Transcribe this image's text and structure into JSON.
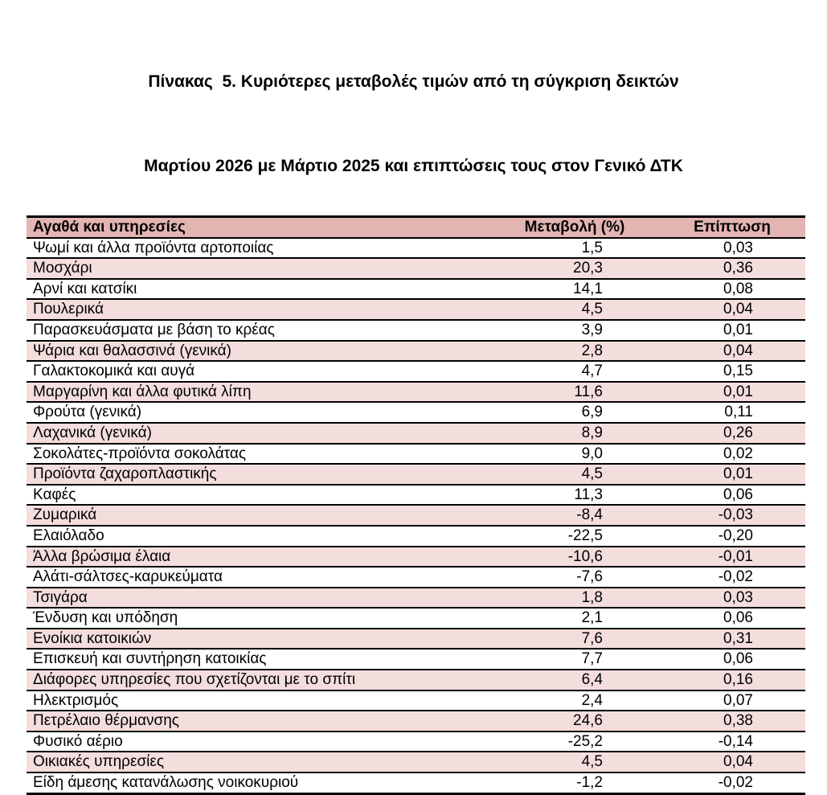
{
  "title": {
    "line1": "Πίνακας  5. Κυριότερες μεταβολές τιμών από τη σύγκριση δεικτών",
    "line2": "Μαρτίου 2026 με Μάρτιο 2025 και επιπτώσεις τους στον Γενικό ΔΤΚ"
  },
  "table": {
    "columns": [
      "Αγαθά και υπηρεσίες",
      "Μεταβολή  (%)",
      "Επίπτωση"
    ],
    "rows": [
      {
        "label": "Ψωμί και άλλα προϊόντα αρτοποιίας",
        "change": "1,5",
        "impact": "0,03"
      },
      {
        "label": "Μοσχάρι",
        "change": "20,3",
        "impact": "0,36"
      },
      {
        "label": "Αρνί και κατσίκι",
        "change": "14,1",
        "impact": "0,08"
      },
      {
        "label": "Πουλερικά",
        "change": "4,5",
        "impact": "0,04"
      },
      {
        "label": "Παρασκευάσματα με βάση το κρέας",
        "change": "3,9",
        "impact": "0,01"
      },
      {
        "label": "Ψάρια και θαλασσινά (γενικά)",
        "change": "2,8",
        "impact": "0,04"
      },
      {
        "label": "Γαλακτοκομικά και αυγά",
        "change": "4,7",
        "impact": "0,15"
      },
      {
        "label": "Μαργαρίνη και άλλα φυτικά λίπη",
        "change": "11,6",
        "impact": "0,01"
      },
      {
        "label": "Φρούτα (γενικά)",
        "change": "6,9",
        "impact": "0,11"
      },
      {
        "label": "Λαχανικά (γενικά)",
        "change": "8,9",
        "impact": "0,26"
      },
      {
        "label": "Σοκολάτες-προϊόντα σοκολάτας",
        "change": "9,0",
        "impact": "0,02"
      },
      {
        "label": "Προϊόντα ζαχαροπλαστικής",
        "change": "4,5",
        "impact": "0,01"
      },
      {
        "label": "Καφές",
        "change": "11,3",
        "impact": "0,06"
      },
      {
        "label": "Ζυμαρικά",
        "change": "-8,4",
        "impact": "-0,03"
      },
      {
        "label": "Ελαιόλαδο",
        "change": "-22,5",
        "impact": "-0,20"
      },
      {
        "label": "Άλλα βρώσιμα έλαια",
        "change": "-10,6",
        "impact": "-0,01"
      },
      {
        "label": "Αλάτι-σάλτσες-καρυκεύματα",
        "change": "-7,6",
        "impact": "-0,02"
      },
      {
        "label": "Τσιγάρα",
        "change": "1,8",
        "impact": "0,03"
      },
      {
        "label": "Ένδυση και υπόδηση",
        "change": "2,1",
        "impact": "0,06"
      },
      {
        "label": "Ενοίκια κατοικιών",
        "change": "7,6",
        "impact": "0,31"
      },
      {
        "label": "Επισκευή και συντήρηση κατοικίας",
        "change": "7,7",
        "impact": "0,06"
      },
      {
        "label": "Διάφορες υπηρεσίες που σχετίζονται με το σπίτι",
        "change": "6,4",
        "impact": "0,16"
      },
      {
        "label": "Ηλεκτρισμός",
        "change": "2,4",
        "impact": "0,07"
      },
      {
        "label": "Πετρέλαιο θέρμανσης",
        "change": "24,6",
        "impact": "0,38"
      },
      {
        "label": "Φυσικό αέριο",
        "change": "-25,2",
        "impact": "-0,14"
      },
      {
        "label": "Οικιακές υπηρεσίες",
        "change": "4,5",
        "impact": "0,04"
      },
      {
        "label": "Είδη άμεσης κατανάλωσης νοικοκυριού",
        "change": "-1,2",
        "impact": "-0,02"
      }
    ]
  },
  "colors": {
    "header_bg": "#e2b4b2",
    "row_alt_bg": "#f3dedd",
    "border": "#000000",
    "text": "#000000"
  }
}
